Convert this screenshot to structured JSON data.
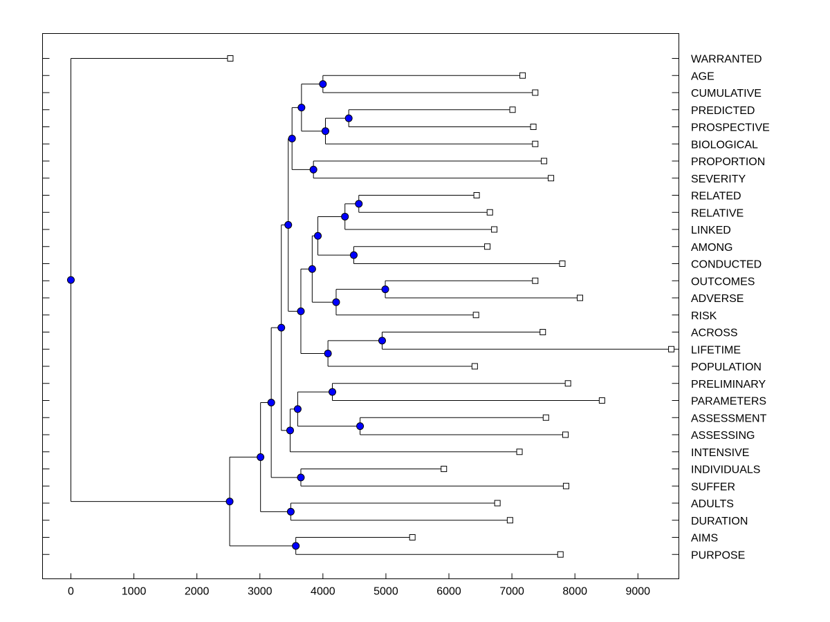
{
  "chart_data": {
    "type": "dendrogram",
    "orientation": "horizontal",
    "title": "",
    "xlabel": "",
    "ylabel": "",
    "xlim": [
      -450,
      9650
    ],
    "x_ticks": [
      0,
      1000,
      2000,
      3000,
      4000,
      5000,
      6000,
      7000,
      8000,
      9000
    ],
    "grid": false,
    "legend": "none",
    "colors": {
      "node_fill": "#0000ff",
      "line": "#000000",
      "leaf_fill": "#ffffff"
    },
    "leaves": [
      {
        "name": "WARRANTED",
        "value": 2530
      },
      {
        "name": "AGE",
        "value": 7170
      },
      {
        "name": "CUMULATIVE",
        "value": 7370
      },
      {
        "name": "PREDICTED",
        "value": 7010
      },
      {
        "name": "PROSPECTIVE",
        "value": 7340
      },
      {
        "name": "BIOLOGICAL",
        "value": 7370
      },
      {
        "name": "PROPORTION",
        "value": 7510
      },
      {
        "name": "SEVERITY",
        "value": 7620
      },
      {
        "name": "RELATED",
        "value": 6440
      },
      {
        "name": "RELATIVE",
        "value": 6650
      },
      {
        "name": "LINKED",
        "value": 6720
      },
      {
        "name": "AMONG",
        "value": 6610
      },
      {
        "name": "CONDUCTED",
        "value": 7800
      },
      {
        "name": "OUTCOMES",
        "value": 7370
      },
      {
        "name": "ADVERSE",
        "value": 8080
      },
      {
        "name": "RISK",
        "value": 6430
      },
      {
        "name": "ACROSS",
        "value": 7490
      },
      {
        "name": "LIFETIME",
        "value": 9530
      },
      {
        "name": "POPULATION",
        "value": 6410
      },
      {
        "name": "PRELIMINARY",
        "value": 7890
      },
      {
        "name": "PARAMETERS",
        "value": 8430
      },
      {
        "name": "ASSESSMENT",
        "value": 7540
      },
      {
        "name": "ASSESSING",
        "value": 7850
      },
      {
        "name": "INTENSIVE",
        "value": 7120
      },
      {
        "name": "INDIVIDUALS",
        "value": 5920
      },
      {
        "name": "SUFFER",
        "value": 7860
      },
      {
        "name": "ADULTS",
        "value": 6770
      },
      {
        "name": "DURATION",
        "value": 6970
      },
      {
        "name": "AIMS",
        "value": 5420
      },
      {
        "name": "PURPOSE",
        "value": 7770
      }
    ],
    "tree": {
      "value": 0,
      "children": [
        {
          "leaf": 0
        },
        {
          "value": 2520,
          "children": [
            {
              "value": 3010,
              "children": [
                {
                  "value": 3180,
                  "children": [
                    {
                      "value": 3340,
                      "children": [
                        {
                          "value": 3450,
                          "children": [
                            {
                              "value": 3510,
                              "children": [
                                {
                                  "value": 3660,
                                  "children": [
                                    {
                                      "value": 4000,
                                      "children": [
                                        {
                                          "leaf": 1
                                        },
                                        {
                                          "leaf": 2
                                        }
                                      ]
                                    },
                                    {
                                      "value": 4040,
                                      "children": [
                                        {
                                          "value": 4410,
                                          "children": [
                                            {
                                              "leaf": 3
                                            },
                                            {
                                              "leaf": 4
                                            }
                                          ]
                                        },
                                        {
                                          "leaf": 5
                                        }
                                      ]
                                    }
                                  ]
                                },
                                {
                                  "value": 3850,
                                  "children": [
                                    {
                                      "leaf": 6
                                    },
                                    {
                                      "leaf": 7
                                    }
                                  ]
                                }
                              ]
                            },
                            {
                              "value": 3650,
                              "children": [
                                {
                                  "value": 3830,
                                  "children": [
                                    {
                                      "value": 3920,
                                      "children": [
                                        {
                                          "value": 4350,
                                          "children": [
                                            {
                                              "value": 4570,
                                              "children": [
                                                {
                                                  "leaf": 8
                                                },
                                                {
                                                  "leaf": 9
                                                }
                                              ]
                                            },
                                            {
                                              "leaf": 10
                                            }
                                          ]
                                        },
                                        {
                                          "value": 4490,
                                          "children": [
                                            {
                                              "leaf": 11
                                            },
                                            {
                                              "leaf": 12
                                            }
                                          ]
                                        }
                                      ]
                                    },
                                    {
                                      "value": 4210,
                                      "children": [
                                        {
                                          "value": 4990,
                                          "children": [
                                            {
                                              "leaf": 13
                                            },
                                            {
                                              "leaf": 14
                                            }
                                          ]
                                        },
                                        {
                                          "leaf": 15
                                        }
                                      ]
                                    }
                                  ]
                                },
                                {
                                  "value": 4080,
                                  "children": [
                                    {
                                      "value": 4940,
                                      "children": [
                                        {
                                          "leaf": 16
                                        },
                                        {
                                          "leaf": 17
                                        }
                                      ]
                                    },
                                    {
                                      "leaf": 18
                                    }
                                  ]
                                }
                              ]
                            }
                          ]
                        },
                        {
                          "value": 3480,
                          "children": [
                            {
                              "value": 3600,
                              "children": [
                                {
                                  "value": 4150,
                                  "children": [
                                    {
                                      "leaf": 19
                                    },
                                    {
                                      "leaf": 20
                                    }
                                  ]
                                },
                                {
                                  "value": 4590,
                                  "children": [
                                    {
                                      "leaf": 21
                                    },
                                    {
                                      "leaf": 22
                                    }
                                  ]
                                }
                              ]
                            },
                            {
                              "leaf": 23
                            }
                          ]
                        }
                      ]
                    },
                    {
                      "value": 3650,
                      "children": [
                        {
                          "leaf": 24
                        },
                        {
                          "leaf": 25
                        }
                      ]
                    }
                  ]
                },
                {
                  "value": 3490,
                  "children": [
                    {
                      "leaf": 26
                    },
                    {
                      "leaf": 27
                    }
                  ]
                }
              ]
            },
            {
              "value": 3570,
              "children": [
                {
                  "leaf": 28
                },
                {
                  "leaf": 29
                }
              ]
            }
          ]
        }
      ]
    }
  }
}
